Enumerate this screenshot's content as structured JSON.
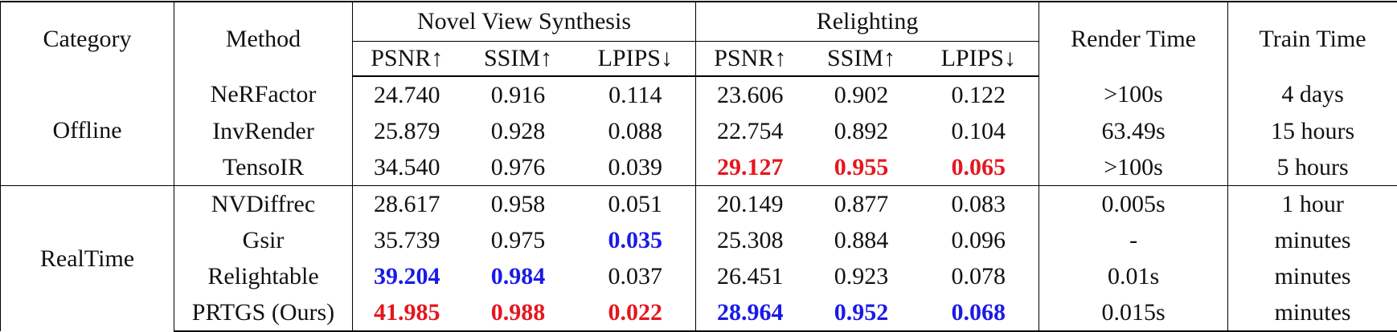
{
  "styles": {
    "best": "#e5161d",
    "second": "#1a1ae8"
  },
  "header": {
    "category": "Category",
    "method": "Method",
    "groups": [
      {
        "title": "Novel View Synthesis",
        "columns": [
          "PSNR↑",
          "SSIM↑",
          "LPIPS↓"
        ]
      },
      {
        "title": "Relighting",
        "columns": [
          "PSNR↑",
          "SSIM↑",
          "LPIPS↓"
        ]
      }
    ],
    "render_time": "Render Time",
    "train_time": "Train Time"
  },
  "sections": [
    {
      "category": "Offline",
      "rows": [
        [
          "NeRFactor",
          "24.740",
          "0.916",
          "0.114",
          "23.606",
          "0.902",
          "0.122",
          ">100s",
          "4 days"
        ],
        [
          "InvRender",
          "25.879",
          "0.928",
          "0.088",
          "22.754",
          "0.892",
          "0.104",
          "63.49s",
          "15 hours"
        ],
        [
          "TensoIR",
          "34.540",
          "0.976",
          "0.039",
          {
            "text": "29.127",
            "style": "best"
          },
          {
            "text": "0.955",
            "style": "best"
          },
          {
            "text": "0.065",
            "style": "best"
          },
          ">100s",
          "5 hours"
        ]
      ]
    },
    {
      "category": "RealTime",
      "rows": [
        [
          "NVDiffrec",
          "28.617",
          "0.958",
          "0.051",
          "20.149",
          "0.877",
          "0.083",
          "0.005s",
          "1 hour"
        ],
        [
          "Gsir",
          "35.739",
          "0.975",
          {
            "text": "0.035",
            "style": "second"
          },
          "25.308",
          "0.884",
          "0.096",
          "-",
          "minutes"
        ],
        [
          "Relightable",
          {
            "text": "39.204",
            "style": "second"
          },
          {
            "text": "0.984",
            "style": "second"
          },
          "0.037",
          "26.451",
          "0.923",
          "0.078",
          "0.01s",
          "minutes"
        ],
        [
          "PRTGS (Ours)",
          {
            "text": "41.985",
            "style": "best"
          },
          {
            "text": "0.988",
            "style": "best"
          },
          {
            "text": "0.022",
            "style": "best"
          },
          {
            "text": "28.964",
            "style": "second"
          },
          {
            "text": "0.952",
            "style": "second"
          },
          {
            "text": "0.068",
            "style": "second"
          },
          "0.015s",
          "minutes"
        ]
      ]
    }
  ]
}
